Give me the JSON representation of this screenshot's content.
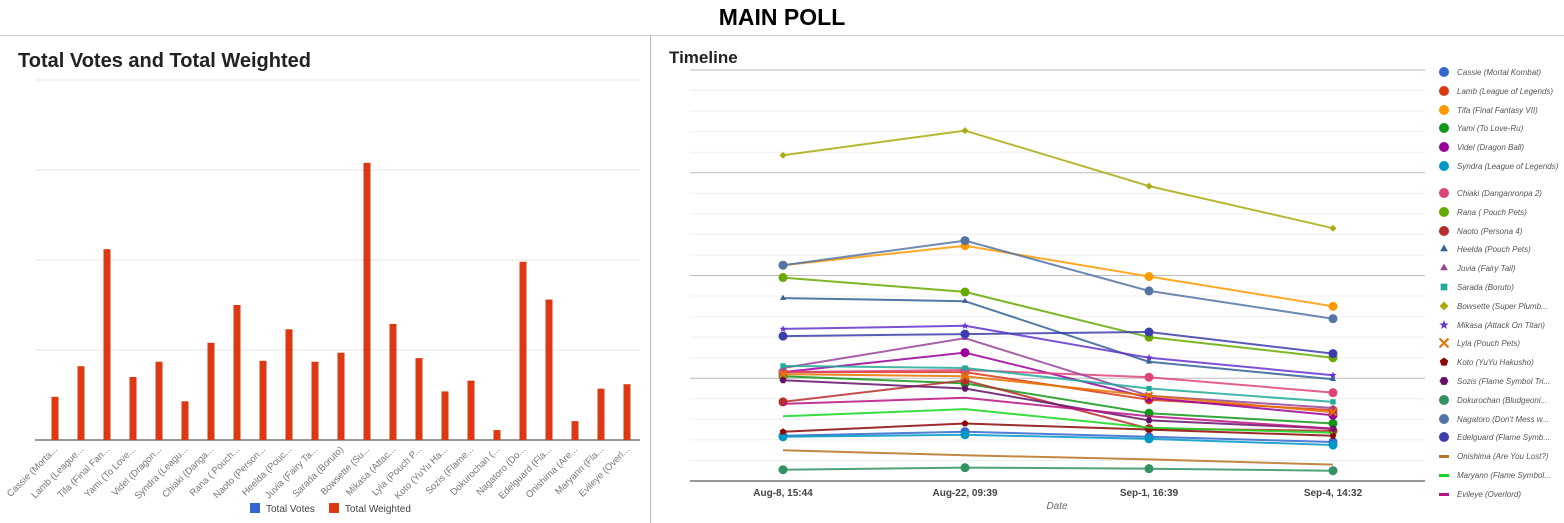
{
  "page_title": "MAIN POLL",
  "chart_data": [
    {
      "type": "bar",
      "title": "Total Votes and Total Weighted",
      "categories": [
        "Cassie (Morta...",
        "Lamb (League...",
        "Tifa (Final Fan...",
        "Yami (To Love...",
        "Videl (Dragon...",
        "Syndra (Leagu...",
        "Chiaki (Danga...",
        "Rana ( Pouch...",
        "Naoto (Person...",
        "Heelda (Pouc...",
        "Juvia (Fairy Ta...",
        "Sarada (Boruto)",
        "Bowsette (Su...",
        "Mikasa (Attac...",
        "Lyla (Pouch P...",
        "Koto (YuYu Ha...",
        "Sozis (Flame...",
        "Dokurochan (...",
        "Nagatoro (Do...",
        "Edelguard (Fla...",
        "Onishima (Are...",
        "Maryann (Fla...",
        "Evileye (Overl..."
      ],
      "series": [
        {
          "name": "Total Votes",
          "color": "#3366cc",
          "values": [
            0,
            0,
            0,
            0,
            0,
            0,
            0,
            0,
            0,
            0,
            0,
            0,
            0,
            0,
            0,
            0,
            0,
            0,
            0,
            0,
            0,
            0,
            0
          ]
        },
        {
          "name": "Total Weighted",
          "color": "#dc3912",
          "values": [
            48,
            82,
            212,
            70,
            87,
            43,
            108,
            150,
            88,
            123,
            87,
            97,
            308,
            129,
            91,
            54,
            66,
            11,
            198,
            156,
            21,
            57,
            62
          ]
        }
      ],
      "ylim": [
        0,
        400
      ],
      "grid": true,
      "legend": "bottom"
    },
    {
      "type": "line",
      "title": "Timeline",
      "xlabel": "Date",
      "x": [
        "Aug-8, 15:44",
        "Aug-22, 09:39",
        "Sep-1, 16:39",
        "Sep-4, 14:32"
      ],
      "ylim": [
        0,
        400
      ],
      "grid": true,
      "legend": "right",
      "series": [
        {
          "name": "Cassie (Mortal Kombat)",
          "color": "#3366cc",
          "marker": "circle",
          "values": [
            44,
            48,
            43,
            38
          ]
        },
        {
          "name": "Lamb (League of Legends)",
          "color": "#dc3912",
          "marker": "circle",
          "values": [
            106,
            106,
            79,
            69
          ]
        },
        {
          "name": "Tifa (Final Fantasy VII)",
          "color": "#ff9900",
          "marker": "circle",
          "values": [
            210,
            229,
            199,
            170
          ]
        },
        {
          "name": "Yami (To Love-Ru)",
          "color": "#109618",
          "marker": "circle",
          "values": [
            102,
            95,
            66,
            56
          ]
        },
        {
          "name": "Videl (Dragon Ball)",
          "color": "#990099",
          "marker": "circle",
          "values": [
            106,
            125,
            81,
            64
          ]
        },
        {
          "name": "Syndra (League of Legends)",
          "color": "#0099c6",
          "marker": "circle",
          "values": [
            43,
            45,
            41,
            35
          ]
        },
        {
          "name": "Chiaki (Danganronpa 2)",
          "color": "#dd4477",
          "marker": "circle",
          "values": [
            106,
            108,
            101,
            86
          ]
        },
        {
          "name": "Rana ( Pouch Pets)",
          "color": "#66aa00",
          "marker": "circle",
          "values": [
            198,
            184,
            140,
            120
          ]
        },
        {
          "name": "Naoto (Persona 4)",
          "color": "#b82e2e",
          "marker": "circle",
          "values": [
            77,
            98,
            51,
            49
          ]
        },
        {
          "name": "Heelda (Pouch Pets)",
          "color": "#316395",
          "marker": "triangle",
          "values": [
            178,
            175,
            116,
            99
          ]
        },
        {
          "name": "Juvia (Fairy Tail)",
          "color": "#994499",
          "marker": "triangle",
          "values": [
            110,
            139,
            83,
            71
          ]
        },
        {
          "name": "Sarada (Boruto)",
          "color": "#22aa99",
          "marker": "square",
          "values": [
            112,
            110,
            90,
            77
          ]
        },
        {
          "name": "Bowsette (Super Plumb...",
          "color": "#aaaa11",
          "marker": "diamond",
          "values": [
            317,
            341,
            287,
            246
          ]
        },
        {
          "name": "Mikasa (Attack On Titan)",
          "color": "#6633cc",
          "marker": "star",
          "values": [
            148,
            151,
            120,
            103
          ]
        },
        {
          "name": "Lyla (Pouch Pets)",
          "color": "#e67300",
          "marker": "x",
          "values": [
            104,
            102,
            83,
            67
          ]
        },
        {
          "name": "Koto (YuYu Hakusho)",
          "color": "#8b0707",
          "marker": "pentagon",
          "values": [
            48,
            56,
            50,
            44
          ]
        },
        {
          "name": "Sozis (Flame Symbol Tri...",
          "color": "#651067",
          "marker": "hexagon",
          "values": [
            98,
            90,
            59,
            51
          ]
        },
        {
          "name": "Dokurochan (Bludgeoni...",
          "color": "#329262",
          "marker": "circle",
          "values": [
            11,
            13,
            12,
            10
          ]
        },
        {
          "name": "Nagatoro (Don't Mess w...",
          "color": "#5574a6",
          "marker": "circle",
          "values": [
            210,
            234,
            185,
            158
          ]
        },
        {
          "name": "Edelguard (Flame Symb...",
          "color": "#3b3eac",
          "marker": "circle",
          "values": [
            141,
            143,
            145,
            124
          ]
        },
        {
          "name": "Onishima (Are You Lost?)",
          "color": "#b77322",
          "marker": "none",
          "values": [
            30,
            25,
            21,
            16
          ]
        },
        {
          "name": "Maryann (Flame Symbol...",
          "color": "#16d620",
          "marker": "none",
          "values": [
            63,
            70,
            52,
            47
          ]
        },
        {
          "name": "Evileye (Overlord)",
          "color": "#b91383",
          "marker": "none",
          "values": [
            75,
            81,
            63,
            51
          ]
        }
      ]
    }
  ]
}
